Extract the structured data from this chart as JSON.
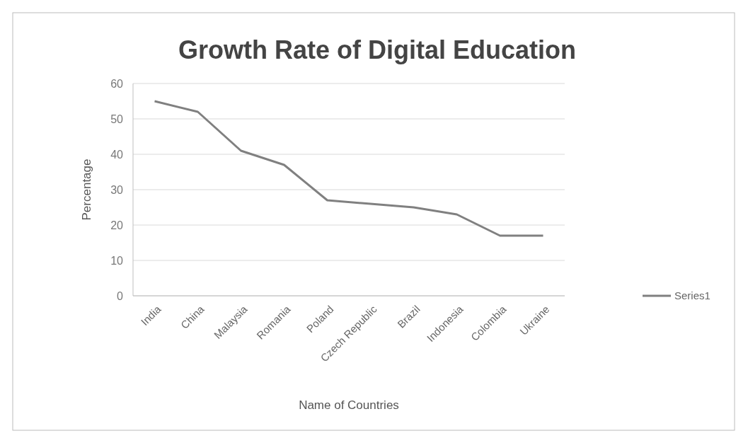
{
  "chart_data": {
    "type": "line",
    "title": "Growth Rate of Digital Education",
    "xlabel": "Name of Countries",
    "ylabel": "Percentage",
    "categories": [
      "India",
      "China",
      "Malaysia",
      "Romania",
      "Poland",
      "Czech Republic",
      "Brazil",
      "Indonesia",
      "Colombia",
      "Ukraine"
    ],
    "series": [
      {
        "name": "Series1",
        "color": "#808080",
        "values": [
          55,
          52,
          41,
          37,
          27,
          26,
          25,
          23,
          17,
          17
        ]
      }
    ],
    "ylim": [
      0,
      60
    ],
    "yticks": [
      0,
      10,
      20,
      30,
      40,
      50,
      60
    ],
    "grid": "y",
    "legend": "right"
  }
}
